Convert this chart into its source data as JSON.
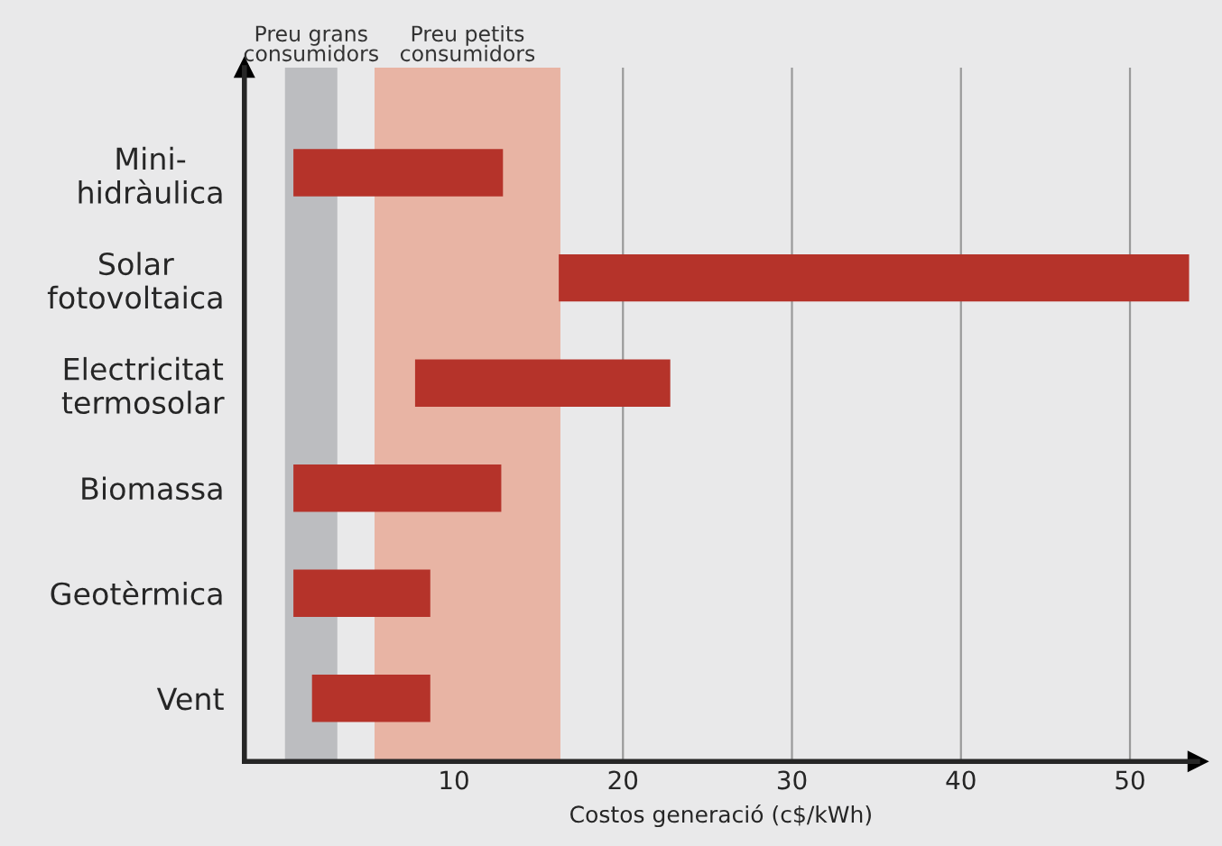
{
  "chart_data": {
    "type": "bar",
    "orientation": "horizontal",
    "xlabel": "Costos generació (c$/kWh)",
    "categories": [
      "Mini-\nhidràulica",
      "Solar\nfotovoltaica",
      "Electricitat\ntermosolar",
      "Biomassa",
      "Geotèrmica",
      "Vent"
    ],
    "base": [
      0.5,
      16.2,
      7.7,
      0.5,
      0.5,
      1.6
    ],
    "values": [
      12.4,
      37.3,
      15.1,
      12.3,
      8.1,
      7.0
    ],
    "color": "#b5332a",
    "xlim": [
      -2.4,
      54
    ],
    "xticks": [
      10,
      20,
      30,
      40,
      50
    ],
    "grid": "x",
    "bands": [
      {
        "axis": "x",
        "from": 0,
        "to": 3.1,
        "label": "Preu grans\nconsumidors",
        "color": "#bcbdc0"
      },
      {
        "axis": "x",
        "from": 5.3,
        "to": 16.3,
        "label": "Preu petits\nconsumidors",
        "color": "#e8b4a4"
      }
    ]
  }
}
